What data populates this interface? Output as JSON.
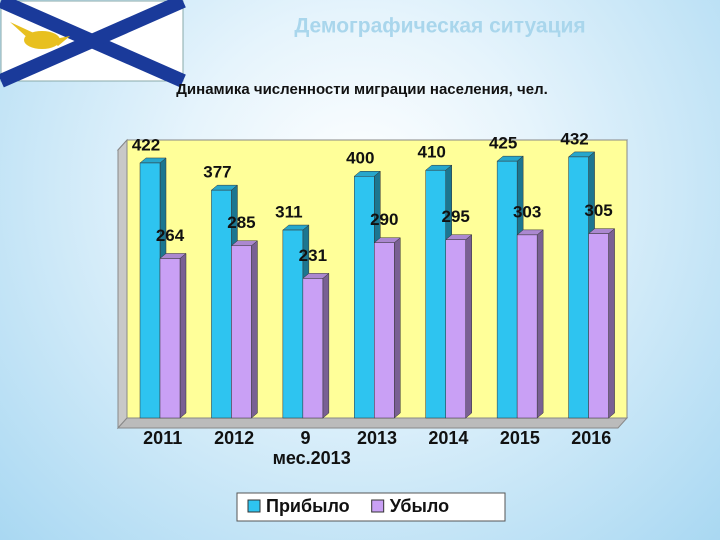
{
  "chart_data": {
    "type": "bar",
    "title": "Демографическая ситуация",
    "subtitle": "Динамика численности миграции населения, чел.",
    "categories": [
      "2011",
      "2012",
      "9 мес.2013",
      "2013",
      "2014",
      "2015",
      "2016"
    ],
    "series": [
      {
        "name": "Прибыло",
        "color": "#2ec4f0",
        "values": [
          422,
          377,
          311,
          400,
          410,
          425,
          432
        ]
      },
      {
        "name": "Убыло",
        "color": "#c9a0f5",
        "values": [
          264,
          285,
          231,
          290,
          295,
          303,
          305
        ]
      }
    ],
    "ylim": [
      0,
      460
    ],
    "legend": "bottom"
  }
}
